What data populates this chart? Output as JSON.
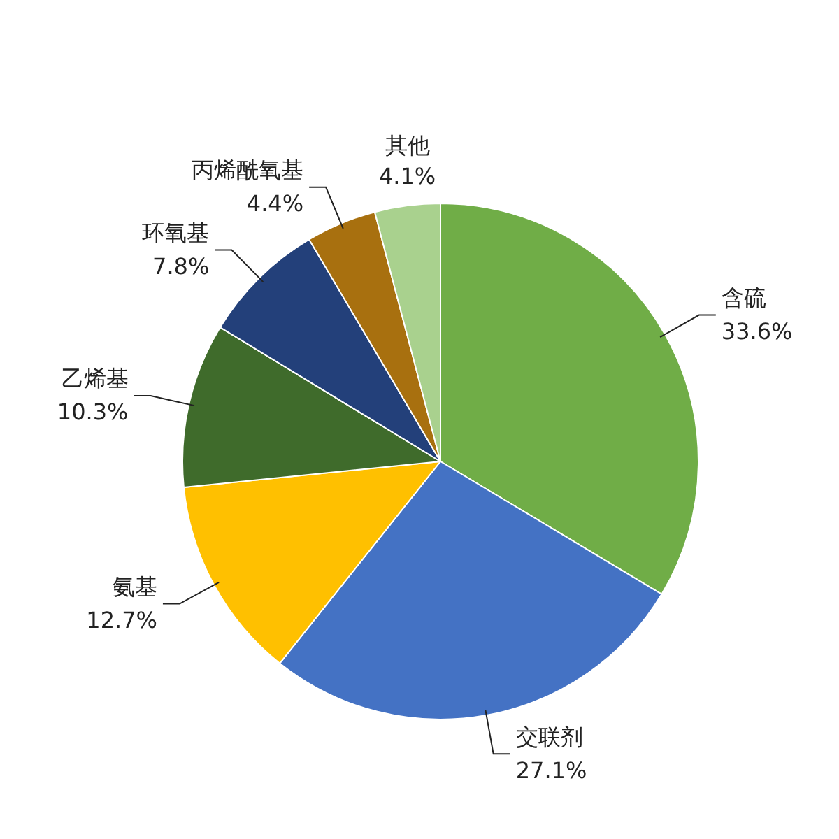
{
  "chart_data": {
    "type": "pie",
    "categories": [
      "含硫",
      "交联剂",
      "氨基",
      "乙烯基",
      "环氧基",
      "丙烯酰氧基",
      "其他"
    ],
    "values": [
      33.6,
      27.1,
      12.7,
      10.3,
      7.8,
      4.4,
      4.1
    ],
    "value_labels": [
      "33.6%",
      "27.1%",
      "12.7%",
      "10.3%",
      "7.8%",
      "4.4%",
      "4.1%"
    ],
    "colors": [
      "#70ad47",
      "#4472c4",
      "#ffc000",
      "#3f6b2b",
      "#23407a",
      "#a8700f",
      "#a9d18e"
    ]
  }
}
